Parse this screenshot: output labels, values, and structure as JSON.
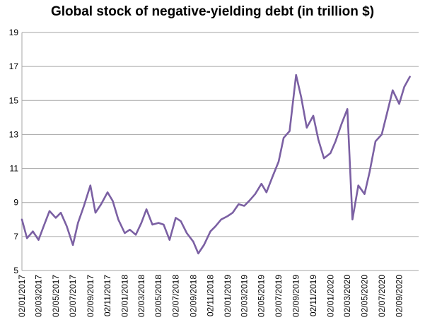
{
  "chart_data": {
    "type": "line",
    "title": "Global stock of negative-yielding debt (in trillion $)",
    "xlabel": "",
    "ylabel": "",
    "ylim": [
      5,
      19
    ],
    "yticks": [
      5,
      7,
      9,
      11,
      13,
      15,
      17,
      19
    ],
    "xlim": [
      "02/01/2017",
      "10/11/2020"
    ],
    "xtick_labels": [
      "02/01/2017",
      "02/03/2017",
      "02/05/2017",
      "02/07/2017",
      "02/09/2017",
      "02/11/2017",
      "02/01/2018",
      "02/03/2018",
      "02/05/2018",
      "02/07/2018",
      "02/09/2018",
      "02/11/2018",
      "02/01/2019",
      "02/03/2019",
      "02/05/2019",
      "02/07/2019",
      "02/09/2019",
      "02/11/2019",
      "02/01/2020",
      "02/03/2020",
      "02/05/2020",
      "02/07/2020",
      "02/09/2020"
    ],
    "grid": true,
    "legend": "none",
    "line_color": "#7b60a3",
    "grid_color": "#a6a6a6",
    "series": [
      {
        "x": [
          "02/01/2017",
          "20/01/2017",
          "10/02/2017",
          "02/03/2017",
          "20/03/2017",
          "10/04/2017",
          "02/05/2017",
          "20/05/2017",
          "10/06/2017",
          "02/07/2017",
          "20/07/2017",
          "10/08/2017",
          "02/09/2017",
          "20/09/2017",
          "10/10/2017",
          "02/11/2017",
          "20/11/2017",
          "10/12/2017",
          "02/01/2018",
          "20/01/2018",
          "10/02/2018",
          "02/03/2018",
          "20/03/2018",
          "10/04/2018",
          "02/05/2018",
          "20/05/2018",
          "10/06/2018",
          "02/07/2018",
          "20/07/2018",
          "10/08/2018",
          "02/09/2018",
          "20/09/2018",
          "10/10/2018",
          "02/11/2018",
          "20/11/2018",
          "10/12/2018",
          "02/01/2019",
          "20/01/2019",
          "10/02/2019",
          "02/03/2019",
          "20/03/2019",
          "10/04/2019",
          "02/05/2019",
          "20/05/2019",
          "10/06/2019",
          "02/07/2019",
          "20/07/2019",
          "10/08/2019",
          "02/09/2019",
          "20/09/2019",
          "10/10/2019",
          "02/11/2019",
          "20/11/2019",
          "10/12/2019",
          "02/01/2020",
          "20/01/2020",
          "10/02/2020",
          "02/03/2020",
          "20/03/2020",
          "10/04/2020",
          "02/05/2020",
          "20/05/2020",
          "10/06/2020",
          "02/07/2020",
          "20/07/2020",
          "10/08/2020",
          "02/09/2020",
          "20/09/2020",
          "10/10/2020"
        ],
        "values": [
          8.0,
          6.9,
          7.3,
          6.8,
          7.6,
          8.5,
          8.1,
          8.4,
          7.6,
          6.5,
          7.8,
          8.8,
          10.0,
          8.4,
          8.9,
          9.6,
          9.1,
          8.0,
          7.2,
          7.4,
          7.1,
          7.8,
          8.6,
          7.7,
          7.8,
          7.7,
          6.8,
          8.1,
          7.9,
          7.2,
          6.7,
          6.0,
          6.5,
          7.3,
          7.6,
          8.0,
          8.2,
          8.4,
          8.9,
          8.8,
          9.1,
          9.5,
          10.1,
          9.6,
          10.5,
          11.4,
          12.8,
          13.2,
          16.5,
          15.2,
          13.4,
          14.1,
          12.7,
          11.6,
          11.9,
          12.6,
          13.6,
          14.5,
          8.0,
          10.0,
          9.5,
          10.8,
          12.6,
          13.0,
          14.2,
          15.6,
          14.8,
          15.8,
          16.4
        ]
      }
    ]
  }
}
